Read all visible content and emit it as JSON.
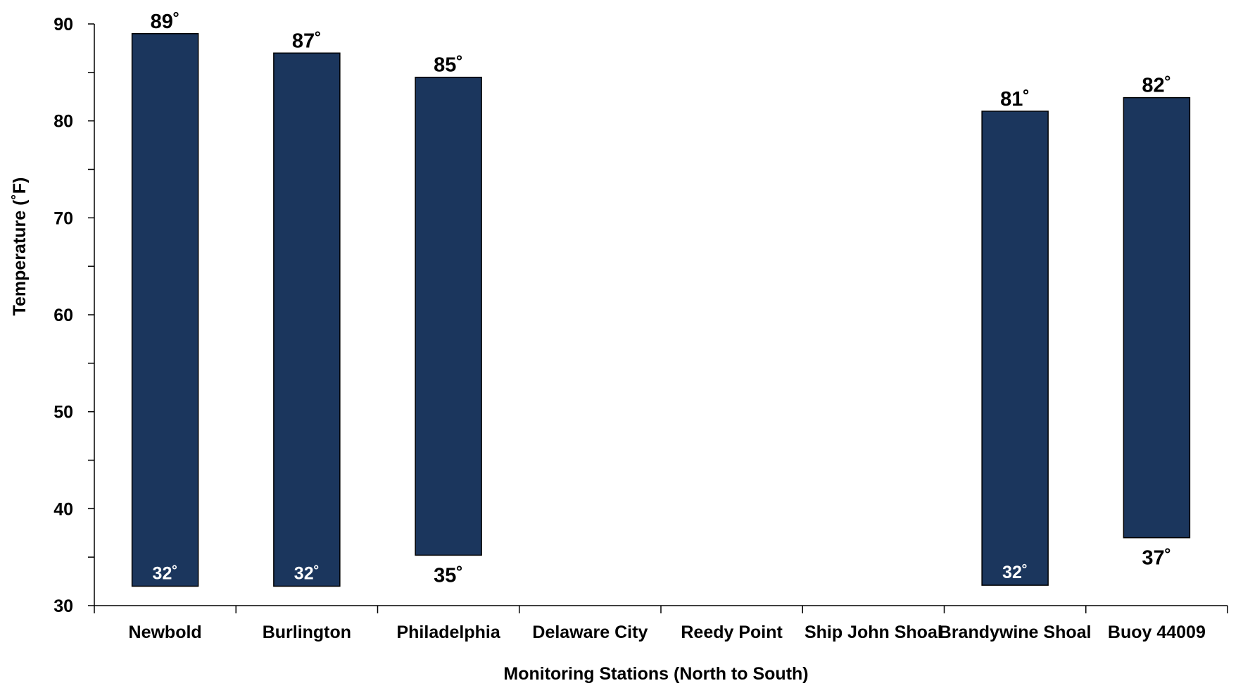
{
  "chart_data": {
    "type": "bar",
    "subtype": "floating-range",
    "categories": [
      "Newbold",
      "Burlington",
      "Philadelphia",
      "Delaware City",
      "Reedy Point",
      "Ship John Shoal",
      "Brandywine Shoal",
      "Buoy 44009"
    ],
    "series": [
      {
        "low": [
          32,
          32,
          35.2,
          null,
          null,
          null,
          32.1,
          37
        ],
        "high": [
          89,
          87,
          84.5,
          null,
          null,
          null,
          81,
          82.4
        ],
        "high_labels": [
          "89˚",
          "87˚",
          "85˚",
          null,
          null,
          null,
          "81˚",
          "82˚"
        ],
        "low_labels": [
          "32˚",
          "32˚",
          "35˚",
          null,
          null,
          null,
          "32˚",
          "37˚"
        ]
      }
    ],
    "xlabel": "Monitoring Stations (North to South)",
    "ylabel": "Temperature (˚F)",
    "ylim": [
      30,
      90
    ],
    "yticks": [
      30,
      40,
      50,
      60,
      70,
      80,
      90
    ],
    "ytick_labels": [
      "30",
      "40",
      "50",
      "60",
      "70",
      "80",
      "90"
    ],
    "grid": false,
    "legend": "none",
    "bar_color": "#1b365d",
    "bar_edge_color": "#000000"
  }
}
